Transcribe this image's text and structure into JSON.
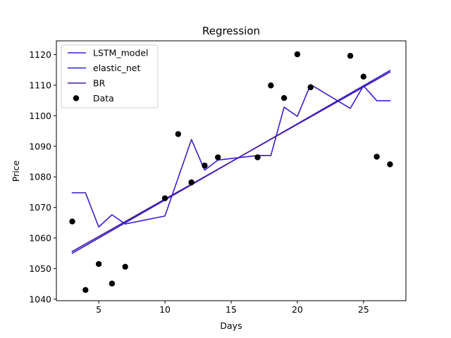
{
  "chart_data": {
    "type": "line",
    "title": "Regression",
    "xlabel": "Days",
    "ylabel": "Price",
    "xlim": [
      1.8,
      28.2
    ],
    "ylim": [
      1039.5,
      1124.5
    ],
    "xticks": [
      5,
      10,
      15,
      20,
      25
    ],
    "yticks": [
      1040,
      1050,
      1060,
      1070,
      1080,
      1090,
      1100,
      1110,
      1120
    ],
    "grid": false,
    "legend_position": "top-left",
    "series": [
      {
        "name": "LSTM_model",
        "kind": "line",
        "color": "#3a1fd0",
        "x": [
          3,
          4,
          5,
          6,
          7,
          10,
          12,
          13,
          14,
          17,
          18,
          19,
          20,
          21,
          24,
          25,
          26,
          27
        ],
        "y": [
          1074.8,
          1074.8,
          1063.6,
          1067.6,
          1064.6,
          1067.2,
          1092.2,
          1082.2,
          1085.5,
          1087.0,
          1087.0,
          1102.8,
          1099.8,
          1110.2,
          1102.4,
          1109.8,
          1104.9,
          1104.9
        ]
      },
      {
        "name": "elastic_net",
        "kind": "line",
        "color": "#2b1ed8",
        "x": [
          3,
          27
        ],
        "y": [
          1055.0,
          1114.8
        ]
      },
      {
        "name": "BR",
        "kind": "line",
        "color": "#4a1a9e",
        "x": [
          3,
          27
        ],
        "y": [
          1055.6,
          1114.3
        ]
      },
      {
        "name": "Data",
        "kind": "scatter",
        "color": "#000000",
        "x": [
          3,
          4,
          5,
          6,
          7,
          10,
          11,
          12,
          13,
          14,
          17,
          18,
          19,
          20,
          21,
          24,
          25,
          26,
          27
        ],
        "y": [
          1065.4,
          1043.0,
          1051.5,
          1045.1,
          1050.6,
          1073.0,
          1094.0,
          1078.2,
          1083.7,
          1086.4,
          1086.4,
          1109.9,
          1105.8,
          1120.1,
          1109.3,
          1119.6,
          1112.8,
          1086.6,
          1084.1
        ]
      }
    ]
  }
}
